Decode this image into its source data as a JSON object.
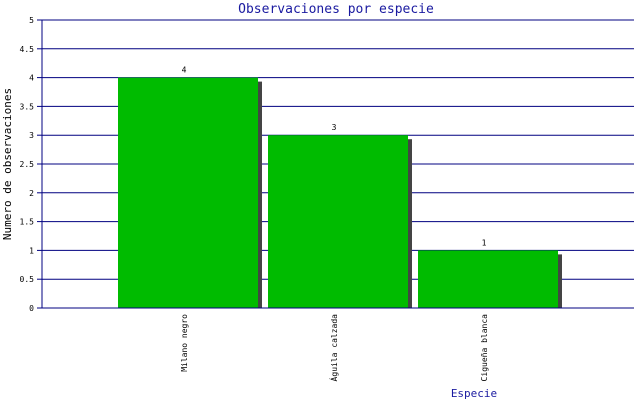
{
  "chart_data": {
    "type": "bar",
    "title": "Observaciones por especie",
    "xlabel": "Especie",
    "ylabel": "Numero de observaciones",
    "categories": [
      "Milano negro",
      "Águila calzada",
      "Cigueña blanca"
    ],
    "values": [
      4,
      3,
      1
    ],
    "data_labels": [
      "4",
      "3",
      "1"
    ],
    "ylim": [
      0,
      5
    ],
    "yticks": [
      "0",
      "0.5",
      "1",
      "1.5",
      "2",
      "2.5",
      "3",
      "3.5",
      "4",
      "4.5",
      "5"
    ],
    "grid": true,
    "colors": {
      "bar": "#00bb00",
      "bar_shadow": "#444444",
      "grid": "#000080",
      "axis": "#000080",
      "title": "#1a1aa0"
    }
  }
}
